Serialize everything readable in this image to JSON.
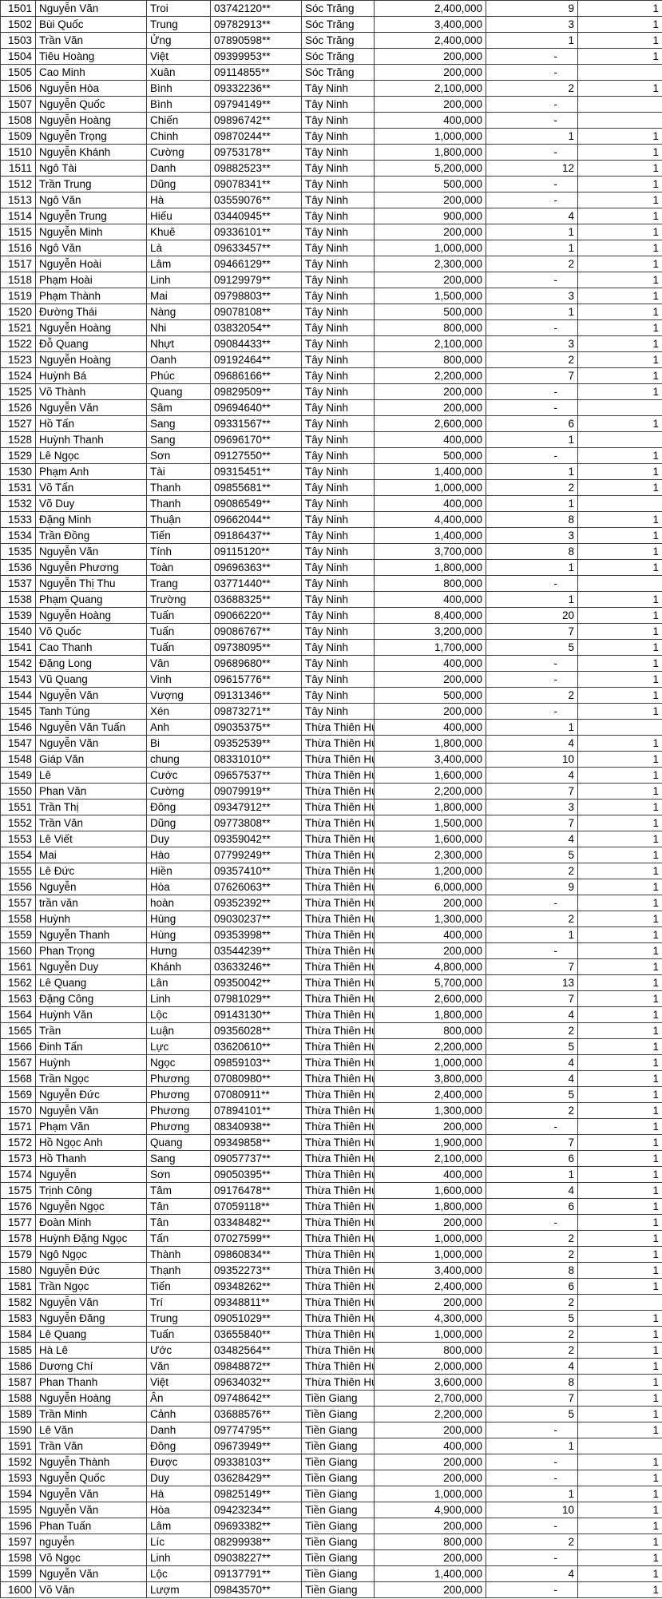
{
  "table": {
    "rows": [
      [
        "1501",
        "Nguyễn Văn",
        "Troi",
        "03742120**",
        "Sóc Trăng",
        "2,400,000",
        "9",
        "1"
      ],
      [
        "1502",
        "Bùi Quốc",
        "Trung",
        "09782913**",
        "Sóc Trăng",
        "3,400,000",
        "3",
        "1"
      ],
      [
        "1503",
        "Trần Văn",
        "Ửng",
        "07890598**",
        "Sóc Trăng",
        "2,400,000",
        "1",
        "1"
      ],
      [
        "1504",
        "Tiêu Hoàng",
        "Việt",
        "09399953**",
        "Sóc Trăng",
        "200,000",
        "-",
        "1"
      ],
      [
        "1505",
        "Cao Minh",
        "Xuân",
        "09114855**",
        "Sóc Trăng",
        "200,000",
        "-",
        ""
      ],
      [
        "1506",
        "Nguyễn Hòa",
        "Bình",
        "09332236**",
        "Tây Ninh",
        "2,100,000",
        "2",
        "1"
      ],
      [
        "1507",
        "Nguyễn Quốc",
        "Bình",
        "09794149**",
        "Tây Ninh",
        "200,000",
        "-",
        ""
      ],
      [
        "1508",
        "Nguyễn Hoàng",
        "Chiến",
        "09896742**",
        "Tây Ninh",
        "400,000",
        "-",
        ""
      ],
      [
        "1509",
        "Nguyễn Trọng",
        "Chinh",
        "09870244**",
        "Tây Ninh",
        "1,000,000",
        "1",
        "1"
      ],
      [
        "1510",
        "Nguyễn Khánh",
        "Cường",
        "09753178**",
        "Tây Ninh",
        "1,800,000",
        "-",
        "1"
      ],
      [
        "1511",
        "Ngô Tài",
        "Danh",
        "09882523**",
        "Tây Ninh",
        "5,200,000",
        "12",
        "1"
      ],
      [
        "1512",
        "Trần Trung",
        "Dũng",
        "09078341**",
        "Tây Ninh",
        "500,000",
        "-",
        "1"
      ],
      [
        "1513",
        "Ngô Văn",
        "Hà",
        "03559076**",
        "Tây Ninh",
        "200,000",
        "-",
        "1"
      ],
      [
        "1514",
        "Nguyễn Trung",
        "Hiếu",
        "03440945**",
        "Tây Ninh",
        "900,000",
        "4",
        "1"
      ],
      [
        "1515",
        "Nguyễn Minh",
        "Khuê",
        "09336101**",
        "Tây Ninh",
        "200,000",
        "1",
        "1"
      ],
      [
        "1516",
        "Ngô Văn",
        "Là",
        "09633457**",
        "Tây Ninh",
        "1,000,000",
        "1",
        "1"
      ],
      [
        "1517",
        "Nguyễn Hoài",
        "Lâm",
        "09466129**",
        "Tây Ninh",
        "2,300,000",
        "2",
        "1"
      ],
      [
        "1518",
        "Phạm Hoài",
        "Linh",
        "09129979**",
        "Tây Ninh",
        "200,000",
        "-",
        "1"
      ],
      [
        "1519",
        "Phạm Thành",
        "Mai",
        "09798803**",
        "Tây Ninh",
        "1,500,000",
        "3",
        "1"
      ],
      [
        "1520",
        "Đường Thái",
        "Nàng",
        "09078108**",
        "Tây Ninh",
        "500,000",
        "1",
        "1"
      ],
      [
        "1521",
        "Nguyễn Hoàng",
        "Nhi",
        "03832054**",
        "Tây Ninh",
        "800,000",
        "-",
        "1"
      ],
      [
        "1522",
        "Đỗ Quang",
        "Nhựt",
        "09084433**",
        "Tây Ninh",
        "2,100,000",
        "3",
        "1"
      ],
      [
        "1523",
        "Nguyễn Hoàng",
        "Oanh",
        "09192464**",
        "Tây Ninh",
        "800,000",
        "2",
        "1"
      ],
      [
        "1524",
        "Huỳnh Bá",
        "Phúc",
        "09686166**",
        "Tây Ninh",
        "2,200,000",
        "7",
        "1"
      ],
      [
        "1525",
        "Võ Thành",
        "Quang",
        "09829509**",
        "Tây Ninh",
        "200,000",
        "-",
        "1"
      ],
      [
        "1526",
        "Nguyễn Văn",
        "Sâm",
        "09694640**",
        "Tây Ninh",
        "200,000",
        "-",
        ""
      ],
      [
        "1527",
        "Hồ Tấn",
        "Sang",
        "09331567**",
        "Tây Ninh",
        "2,600,000",
        "6",
        "1"
      ],
      [
        "1528",
        "Huỳnh Thanh",
        "Sang",
        "09696170**",
        "Tây Ninh",
        "400,000",
        "1",
        ""
      ],
      [
        "1529",
        "Lê Ngọc",
        "Sơn",
        "09127550**",
        "Tây Ninh",
        "500,000",
        "-",
        "1"
      ],
      [
        "1530",
        "Phạm Anh",
        "Tài",
        "09315451**",
        "Tây Ninh",
        "1,400,000",
        "1",
        "1"
      ],
      [
        "1531",
        "Võ Tấn",
        "Thanh",
        "09855681**",
        "Tây Ninh",
        "1,000,000",
        "2",
        "1"
      ],
      [
        "1532",
        "Võ Duy",
        "Thanh",
        "09086549**",
        "Tây Ninh",
        "400,000",
        "1",
        ""
      ],
      [
        "1533",
        "Đặng Minh",
        "Thuận",
        "09662044**",
        "Tây Ninh",
        "4,400,000",
        "8",
        "1"
      ],
      [
        "1534",
        "Trần Đồng",
        "Tiến",
        "09186437**",
        "Tây Ninh",
        "1,400,000",
        "3",
        "1"
      ],
      [
        "1535",
        "Nguyễn Văn",
        "Tính",
        "09115120**",
        "Tây Ninh",
        "3,700,000",
        "8",
        "1"
      ],
      [
        "1536",
        "Nguyễn Phương",
        "Toàn",
        "09696363**",
        "Tây Ninh",
        "1,800,000",
        "1",
        "1"
      ],
      [
        "1537",
        "Nguyễn Thị Thu",
        "Trang",
        "03771440**",
        "Tây Ninh",
        "800,000",
        "-",
        ""
      ],
      [
        "1538",
        "Phạm Quang",
        "Trường",
        "03688325**",
        "Tây Ninh",
        "400,000",
        "1",
        "1"
      ],
      [
        "1539",
        "Nguyễn Hoàng",
        "Tuấn",
        "09066220**",
        "Tây Ninh",
        "8,400,000",
        "20",
        "1"
      ],
      [
        "1540",
        "Võ Quốc",
        "Tuấn",
        "09086767**",
        "Tây Ninh",
        "3,200,000",
        "7",
        "1"
      ],
      [
        "1541",
        "Cao Thanh",
        "Tuấn",
        "09738095**",
        "Tây Ninh",
        "1,700,000",
        "5",
        "1"
      ],
      [
        "1542",
        "Đặng Long",
        "Vân",
        "09689680**",
        "Tây Ninh",
        "400,000",
        "-",
        "1"
      ],
      [
        "1543",
        "Vũ Quang",
        "Vinh",
        "09615776**",
        "Tây Ninh",
        "200,000",
        "-",
        "1"
      ],
      [
        "1544",
        "Nguyễn Văn",
        "Vượng",
        "09131346**",
        "Tây Ninh",
        "500,000",
        "2",
        "1"
      ],
      [
        "1545",
        "Tanh Túng",
        "Xén",
        "09873271**",
        "Tây Ninh",
        "200,000",
        "-",
        "1"
      ],
      [
        "1546",
        "Nguyễn Văn Tuấn",
        "Anh",
        "09035375**",
        "Thừa Thiên Hu",
        "400,000",
        "1",
        ""
      ],
      [
        "1547",
        "Nguyễn Văn",
        "Bi",
        "09352539**",
        "Thừa Thiên Hu",
        "1,800,000",
        "4",
        "1"
      ],
      [
        "1548",
        "Giáp Văn",
        "chung",
        "08331010**",
        "Thừa Thiên Hu",
        "3,400,000",
        "10",
        "1"
      ],
      [
        "1549",
        "Lê",
        "Cước",
        "09657537**",
        "Thừa Thiên Hu",
        "1,600,000",
        "4",
        "1"
      ],
      [
        "1550",
        "Phan Văn",
        "Cường",
        "09079919**",
        "Thừa Thiên Hu",
        "2,200,000",
        "7",
        "1"
      ],
      [
        "1551",
        "Trần Thị",
        "Đông",
        "09347912**",
        "Thừa Thiên Hu",
        "1,800,000",
        "3",
        "1"
      ],
      [
        "1552",
        "Trần Văn",
        "Dũng",
        "09773808**",
        "Thừa Thiên Hu",
        "1,500,000",
        "7",
        "1"
      ],
      [
        "1553",
        "Lê Viết",
        "Duy",
        "09359042**",
        "Thừa Thiên Hu",
        "1,600,000",
        "4",
        "1"
      ],
      [
        "1554",
        "Mai",
        "Hào",
        "07799249**",
        "Thừa Thiên Hu",
        "2,300,000",
        "5",
        "1"
      ],
      [
        "1555",
        "Lê Đức",
        "Hiền",
        "09357410**",
        "Thừa Thiên Hu",
        "1,200,000",
        "2",
        "1"
      ],
      [
        "1556",
        "Nguyễn",
        "Hòa",
        "07626063**",
        "Thừa Thiên Hu",
        "6,000,000",
        "9",
        "1"
      ],
      [
        "1557",
        "trần văn",
        "hoàn",
        "09352392**",
        "Thừa Thiên Hu",
        "200,000",
        "-",
        "1"
      ],
      [
        "1558",
        "Huỳnh",
        "Hùng",
        "09030237**",
        "Thừa Thiên Hu",
        "1,300,000",
        "2",
        "1"
      ],
      [
        "1559",
        "Nguyễn Thanh",
        "Hùng",
        "09353998**",
        "Thừa Thiên Hu",
        "400,000",
        "1",
        "1"
      ],
      [
        "1560",
        "Phan Trọng",
        "Hưng",
        "03544239**",
        "Thừa Thiên Hu",
        "200,000",
        "-",
        "1"
      ],
      [
        "1561",
        "Nguyễn Duy",
        "Khánh",
        "03633246**",
        "Thừa Thiên Hu",
        "4,800,000",
        "7",
        "1"
      ],
      [
        "1562",
        "Lê Quang",
        "Lân",
        "09350042**",
        "Thừa Thiên Hu",
        "5,700,000",
        "13",
        "1"
      ],
      [
        "1563",
        "Đặng Công",
        "Linh",
        "07981029**",
        "Thừa Thiên Hu",
        "2,600,000",
        "7",
        "1"
      ],
      [
        "1564",
        "Huỳnh Văn",
        "Lộc",
        "09143130**",
        "Thừa Thiên Hu",
        "1,800,000",
        "4",
        "1"
      ],
      [
        "1565",
        "Trần",
        "Luận",
        "09356028**",
        "Thừa Thiên Hu",
        "800,000",
        "2",
        "1"
      ],
      [
        "1566",
        "Đinh Tấn",
        "Lực",
        "03620610**",
        "Thừa Thiên Hu",
        "2,200,000",
        "5",
        "1"
      ],
      [
        "1567",
        "Huỳnh",
        "Ngọc",
        "09859103**",
        "Thừa Thiên Hu",
        "1,000,000",
        "4",
        "1"
      ],
      [
        "1568",
        "Trần Ngọc",
        "Phương",
        "07080980**",
        "Thừa Thiên Hu",
        "3,800,000",
        "4",
        "1"
      ],
      [
        "1569",
        "Nguyễn Đức",
        "Phương",
        "07080911**",
        "Thừa Thiên Hu",
        "2,400,000",
        "5",
        "1"
      ],
      [
        "1570",
        "Nguyễn Văn",
        "Phương",
        "07894101**",
        "Thừa Thiên Hu",
        "1,300,000",
        "2",
        "1"
      ],
      [
        "1571",
        "Phạm Văn",
        "Phương",
        "08340938**",
        "Thừa Thiên Hu",
        "200,000",
        "-",
        "1"
      ],
      [
        "1572",
        "Hồ Ngọc Anh",
        "Quang",
        "09349858**",
        "Thừa Thiên Hu",
        "1,900,000",
        "7",
        "1"
      ],
      [
        "1573",
        "Hồ Thanh",
        "Sang",
        "09057737**",
        "Thừa Thiên Hu",
        "2,100,000",
        "6",
        "1"
      ],
      [
        "1574",
        "Nguyễn",
        "Sơn",
        "09050395**",
        "Thừa Thiên Hu",
        "400,000",
        "1",
        "1"
      ],
      [
        "1575",
        "Trịnh Công",
        "Tâm",
        "09176478**",
        "Thừa Thiên Hu",
        "1,600,000",
        "4",
        "1"
      ],
      [
        "1576",
        "Nguyễn Ngọc",
        "Tân",
        "07059118**",
        "Thừa Thiên Hu",
        "1,800,000",
        "6",
        "1"
      ],
      [
        "1577",
        "Đoàn Minh",
        "Tân",
        "03348482**",
        "Thừa Thiên Hu",
        "200,000",
        "-",
        "1"
      ],
      [
        "1578",
        "Huỳnh Đặng Ngọc",
        "Tấn",
        "07027599**",
        "Thừa Thiên Hu",
        "1,000,000",
        "2",
        "1"
      ],
      [
        "1579",
        "Ngô Ngọc",
        "Thành",
        "09860834**",
        "Thừa Thiên Hu",
        "1,000,000",
        "2",
        "1"
      ],
      [
        "1580",
        "Nguyễn Đức",
        "Thạnh",
        "09352273**",
        "Thừa Thiên Hu",
        "3,400,000",
        "8",
        "1"
      ],
      [
        "1581",
        "Trần Ngọc",
        "Tiến",
        "09348262**",
        "Thừa Thiên Hu",
        "2,400,000",
        "6",
        "1"
      ],
      [
        "1582",
        "Nguyễn Văn",
        "Trí",
        "09348811**",
        "Thừa Thiên Hu",
        "200,000",
        "2",
        ""
      ],
      [
        "1583",
        "Nguyễn Đăng",
        "Trung",
        "09051029**",
        "Thừa Thiên Hu",
        "4,300,000",
        "5",
        "1"
      ],
      [
        "1584",
        "Lê Quang",
        "Tuấn",
        "03655840**",
        "Thừa Thiên Hu",
        "1,000,000",
        "2",
        "1"
      ],
      [
        "1585",
        "Hà Lê",
        "Ước",
        "03482564**",
        "Thừa Thiên Hu",
        "800,000",
        "2",
        "1"
      ],
      [
        "1586",
        "Dương Chí",
        "Văn",
        "09848872**",
        "Thừa Thiên Hu",
        "2,000,000",
        "4",
        "1"
      ],
      [
        "1587",
        "Phan Thanh",
        "Việt",
        "09634032**",
        "Thừa Thiên Hu",
        "3,600,000",
        "8",
        "1"
      ],
      [
        "1588",
        "Nguyễn Hoàng",
        "Ân",
        "09748642**",
        "Tiền Giang",
        "2,700,000",
        "7",
        "1"
      ],
      [
        "1589",
        "Trần Minh",
        "Cảnh",
        "03688576**",
        "Tiền Giang",
        "2,200,000",
        "5",
        "1"
      ],
      [
        "1590",
        "Lê Văn",
        "Danh",
        "09774795**",
        "Tiền Giang",
        "200,000",
        "-",
        "1"
      ],
      [
        "1591",
        "Trần Văn",
        "Đông",
        "09673949**",
        "Tiền Giang",
        "400,000",
        "1",
        ""
      ],
      [
        "1592",
        "Nguyễn Thành",
        "Được",
        "09338103**",
        "Tiền Giang",
        "200,000",
        "-",
        "1"
      ],
      [
        "1593",
        "Nguyễn Quốc",
        "Duy",
        "03628429**",
        "Tiền Giang",
        "200,000",
        "-",
        "1"
      ],
      [
        "1594",
        "Nguyễn Văn",
        "Hà",
        "09825149**",
        "Tiền Giang",
        "1,000,000",
        "1",
        "1"
      ],
      [
        "1595",
        "Nguyễn Văn",
        "Hòa",
        "09423234**",
        "Tiền Giang",
        "4,900,000",
        "10",
        "1"
      ],
      [
        "1596",
        "Phan Tuấn",
        "Lâm",
        "09693382**",
        "Tiền Giang",
        "200,000",
        "-",
        "1"
      ],
      [
        "1597",
        "nguyễn",
        "Líc",
        "08299938**",
        "Tiền Giang",
        "800,000",
        "2",
        "1"
      ],
      [
        "1598",
        "Võ Ngọc",
        "Linh",
        "09038227**",
        "Tiền Giang",
        "200,000",
        "-",
        "1"
      ],
      [
        "1599",
        "Nguyễn Văn",
        "Lộc",
        "09137791**",
        "Tiền Giang",
        "1,400,000",
        "4",
        "1"
      ],
      [
        "1600",
        "Võ Văn",
        "Lượm",
        "09843570**",
        "Tiền Giang",
        "200,000",
        "-",
        "1"
      ]
    ]
  }
}
